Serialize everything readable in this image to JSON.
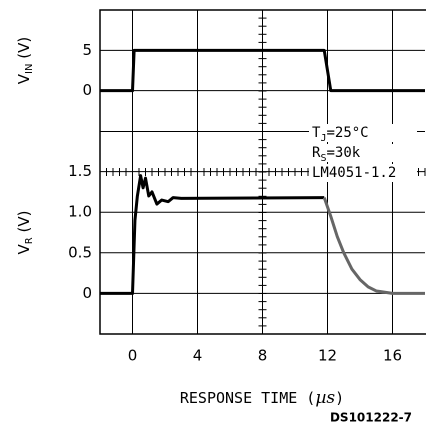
{
  "chart_data": [
    {
      "type": "line",
      "ylabel": {
        "main": "V",
        "sub": "IN",
        "rest": " (V)"
      },
      "xlim": [
        -2,
        18
      ],
      "ylim": [
        -5,
        10
      ],
      "yticks": [
        0,
        5
      ],
      "grid": true,
      "series": [
        {
          "name": "VIN",
          "color": "#000000",
          "x": [
            -2,
            0,
            0.1,
            11.8,
            12.2,
            18
          ],
          "values": [
            0,
            0,
            5,
            5,
            0,
            0
          ]
        }
      ]
    },
    {
      "type": "line",
      "ylabel": {
        "main": "V",
        "sub": "R",
        "rest": " (V)"
      },
      "xlabel": {
        "main": "RESPONSE TIME (",
        "unit": "µs",
        "rest": ")"
      },
      "xlim": [
        -2,
        18
      ],
      "xticks": [
        0,
        4,
        8,
        12,
        16
      ],
      "ylim": [
        -0.5,
        2
      ],
      "yticks": [
        0,
        0.5,
        {
          "value": 1,
          "label": "1.0"
        },
        1.5
      ],
      "grid": true,
      "annotations": [
        {
          "main": "T",
          "sub": "J",
          "rest": "=25°C"
        },
        {
          "main": "R",
          "sub": "S",
          "rest": "=30k"
        },
        {
          "main": "LM4051-1.2",
          "sub": "",
          "rest": ""
        }
      ],
      "series": [
        {
          "name": "VR",
          "color": "#000000",
          "x": [
            -2,
            0,
            0.15,
            0.3,
            0.5,
            0.65,
            0.8,
            1.0,
            1.2,
            1.5,
            1.8,
            2.2,
            2.5,
            3,
            11.8
          ],
          "values": [
            0,
            0,
            0.9,
            1.2,
            1.45,
            1.3,
            1.42,
            1.2,
            1.25,
            1.1,
            1.15,
            1.13,
            1.18,
            1.17,
            1.18
          ]
        },
        {
          "name": "VR decay",
          "color": "#666666",
          "x": [
            11.8,
            12.2,
            12.6,
            13,
            13.5,
            14,
            14.5,
            15,
            16,
            18
          ],
          "values": [
            1.18,
            0.95,
            0.7,
            0.5,
            0.3,
            0.17,
            0.08,
            0.03,
            0,
            0
          ]
        }
      ]
    }
  ],
  "footer": "DS101222-7"
}
